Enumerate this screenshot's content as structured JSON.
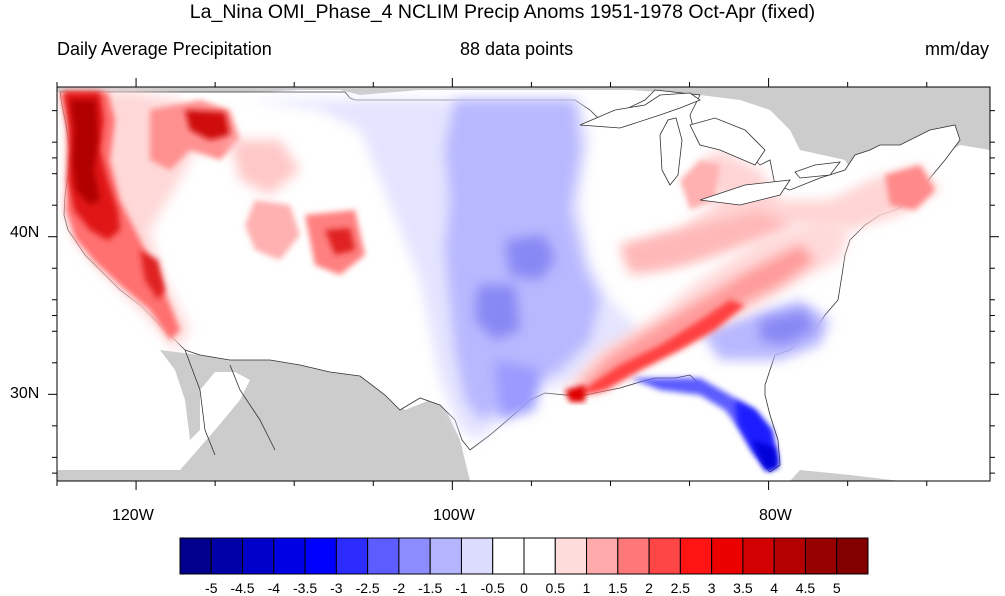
{
  "header": {
    "title": "La_Nina OMI_Phase_4 NCLIM Precip Anoms 1951-1978 Oct-Apr (fixed)",
    "left_label": "Daily Average Precipitation",
    "center_label": "88 data points",
    "right_label": "mm/day"
  },
  "axes": {
    "lat_labels": [
      "40N",
      "30N"
    ],
    "lon_labels": [
      "120W",
      "100W",
      "80W"
    ],
    "lat_range": [
      24.5,
      49.5
    ],
    "lon_range": [
      -125,
      -66
    ]
  },
  "colorbar": {
    "labels": [
      "-5",
      "-4.5",
      "-4",
      "-3.5",
      "-3",
      "-2.5",
      "-2",
      "-1.5",
      "-1",
      "-0.5",
      "0",
      "0.5",
      "1",
      "1.5",
      "2",
      "2.5",
      "3",
      "3.5",
      "4",
      "4.5",
      "5"
    ],
    "colors": [
      "#00008c",
      "#0000a9",
      "#0000c8",
      "#0000e4",
      "#0000ff",
      "#2c2cff",
      "#5c5cff",
      "#8c8cff",
      "#b4b4ff",
      "#dcdcff",
      "#ffffff",
      "#ffffff",
      "#ffdcdc",
      "#ffaaaa",
      "#ff7878",
      "#ff4646",
      "#ff1414",
      "#eb0000",
      "#d20000",
      "#b40000",
      "#960000",
      "#820000"
    ]
  },
  "colors": {
    "land_outside": "#cccccc",
    "ocean": "#ffffff",
    "neutral": "#ffffff"
  }
}
